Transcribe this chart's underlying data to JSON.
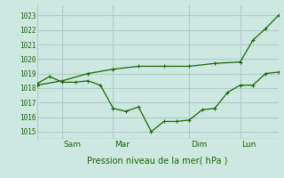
{
  "title": "Pression niveau de la mer( hPa )",
  "bg_color": "#cce8e0",
  "grid_color": "#aacccc",
  "line_color": "#1a6600",
  "ylim": [
    1014.5,
    1023.7
  ],
  "yticks": [
    1015,
    1016,
    1017,
    1018,
    1019,
    1020,
    1021,
    1022,
    1023
  ],
  "xlim": [
    0,
    19
  ],
  "xtick_labels": [
    "Sam",
    "Mar",
    "Dim",
    "Lun"
  ],
  "xtick_positions": [
    2,
    6,
    12,
    16
  ],
  "vline_x": [
    0,
    2,
    6,
    12,
    16,
    19
  ],
  "line1_x": [
    0,
    2,
    4,
    6,
    8,
    10,
    12,
    14,
    16,
    17,
    18,
    19
  ],
  "line1_y": [
    1018.2,
    1018.5,
    1019.0,
    1019.3,
    1019.5,
    1019.5,
    1019.5,
    1019.7,
    1019.8,
    1021.3,
    1022.1,
    1023.0
  ],
  "line2_x": [
    0,
    1,
    2,
    3,
    4,
    5,
    6,
    7,
    8,
    9,
    10,
    11,
    12,
    13,
    14,
    15,
    16,
    17,
    18,
    19
  ],
  "line2_y": [
    1018.3,
    1018.8,
    1018.4,
    1018.4,
    1018.5,
    1018.2,
    1016.6,
    1016.4,
    1016.7,
    1015.0,
    1015.7,
    1015.7,
    1015.8,
    1016.5,
    1016.6,
    1017.7,
    1018.2,
    1018.2,
    1019.0,
    1019.1
  ]
}
